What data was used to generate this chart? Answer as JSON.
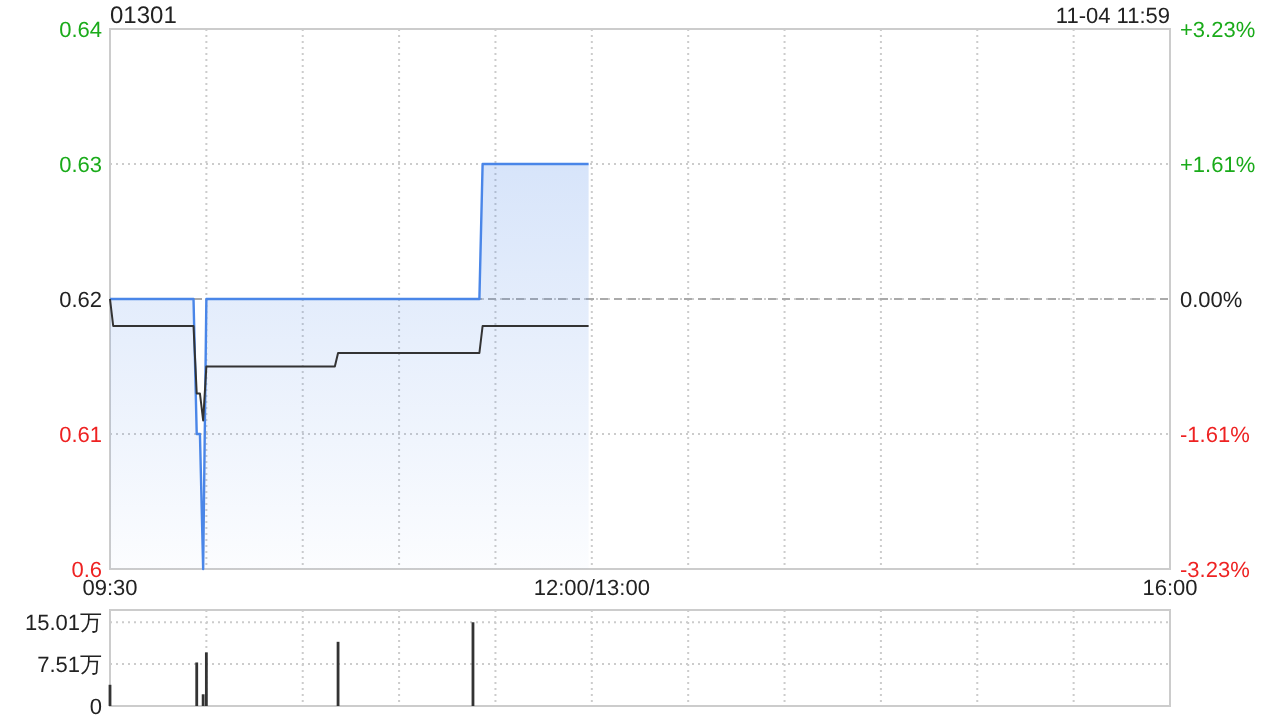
{
  "chart_data": [
    {
      "type": "line",
      "title": "01301",
      "annotations": [
        "11-04 11:59"
      ],
      "categories": [
        "09:30",
        null,
        null,
        null,
        null,
        null,
        null,
        null,
        null,
        null,
        null,
        null,
        null,
        null,
        null,
        null,
        null,
        null,
        null,
        null,
        null,
        null,
        null,
        null,
        null,
        null,
        null,
        null,
        null,
        null,
        null,
        null,
        null,
        null,
        null,
        null,
        null,
        null,
        null,
        null,
        null,
        null,
        null,
        null,
        null,
        null,
        null,
        null,
        null,
        null,
        null,
        null,
        null,
        null,
        null,
        null,
        null,
        null,
        null,
        null,
        null,
        null,
        null,
        null,
        null,
        null,
        null,
        null,
        null,
        null,
        null,
        null,
        null,
        null,
        null,
        null,
        null,
        null,
        null,
        null,
        null,
        null,
        null,
        null,
        null,
        null,
        null,
        null,
        null,
        null,
        null,
        null,
        null,
        null,
        null,
        null,
        null,
        null,
        null,
        null,
        null,
        null,
        null,
        null,
        null,
        null,
        null,
        null,
        null,
        null,
        null,
        null,
        null,
        null,
        null,
        null,
        null,
        null,
        null,
        null,
        null,
        null,
        null,
        null,
        null,
        null,
        null,
        null,
        null,
        null,
        null,
        null,
        null,
        null,
        null,
        null,
        null,
        null,
        null,
        null,
        null,
        null,
        null,
        null,
        null,
        null,
        null,
        null,
        null,
        null,
        "12:00/13:00",
        null,
        null,
        null,
        null,
        null,
        null,
        null,
        null,
        null,
        null,
        null,
        null,
        null,
        null,
        null,
        null,
        null,
        null,
        null,
        null,
        null,
        null,
        null,
        null,
        null,
        null,
        null,
        null,
        null,
        null,
        null,
        null,
        null,
        null,
        null,
        null,
        null,
        null,
        null,
        null,
        null,
        null,
        null,
        null,
        null,
        null,
        null,
        null,
        null,
        null,
        null,
        null,
        null,
        null,
        null,
        null,
        null,
        null,
        null,
        null,
        null,
        null,
        null,
        null,
        null,
        null,
        null,
        null,
        null,
        null,
        null,
        null,
        null,
        null,
        null,
        null,
        null,
        null,
        null,
        null,
        null,
        null,
        null,
        null,
        null,
        null,
        null,
        null,
        null,
        null,
        null,
        null,
        null,
        null,
        null,
        null,
        null,
        null,
        null,
        null,
        null,
        null,
        null,
        null,
        null,
        null,
        null,
        null,
        null,
        null,
        null,
        null,
        null,
        null,
        null,
        null,
        null,
        null,
        null,
        null,
        null,
        null,
        null,
        null,
        null,
        null,
        null,
        null,
        null,
        null,
        null,
        null,
        null,
        null,
        null,
        null,
        null,
        null,
        null,
        null,
        null,
        null,
        null,
        null,
        null,
        null,
        null,
        null,
        null,
        null,
        null,
        null,
        null,
        null,
        null,
        null,
        null,
        null,
        null,
        null,
        null,
        null,
        null,
        null,
        null,
        null,
        null,
        null,
        null,
        null,
        null,
        null,
        null,
        null,
        null,
        null,
        null,
        null,
        null,
        "16:00"
      ],
      "ylim": [
        0.6,
        0.64
      ],
      "yticks": [
        0.6,
        0.61,
        0.62,
        0.63,
        0.64
      ],
      "y2lim": [
        -3.23,
        3.23
      ],
      "y2ticks": [
        {
          "value": -3.23,
          "label": "-3.23%"
        },
        {
          "value": -1.61,
          "label": "-1.61%"
        },
        {
          "value": 0,
          "label": "0.00%"
        },
        {
          "value": 1.61,
          "label": "+1.61%"
        },
        {
          "value": 3.23,
          "label": "+3.23%"
        }
      ],
      "grid": true,
      "ref_lines": [
        {
          "axis": "y",
          "value": 0.62,
          "label": null,
          "color": "#aaaaaa",
          "line_style": "dashed"
        }
      ],
      "series": [
        {
          "type": "area",
          "color": "#4a86e8",
          "values": [
            0.62,
            0.62,
            0.62,
            0.62,
            0.62,
            0.62,
            0.62,
            0.62,
            0.62,
            0.62,
            0.62,
            0.62,
            0.62,
            0.62,
            0.62,
            0.62,
            0.62,
            0.62,
            0.62,
            0.62,
            0.62,
            0.62,
            0.62,
            0.62,
            0.62,
            0.62,
            0.62,
            0.61,
            0.61,
            0.6,
            0.62,
            0.62,
            0.62,
            0.62,
            0.62,
            0.62,
            0.62,
            0.62,
            0.62,
            0.62,
            0.62,
            0.62,
            0.62,
            0.62,
            0.62,
            0.62,
            0.62,
            0.62,
            0.62,
            0.62,
            0.62,
            0.62,
            0.62,
            0.62,
            0.62,
            0.62,
            0.62,
            0.62,
            0.62,
            0.62,
            0.62,
            0.62,
            0.62,
            0.62,
            0.62,
            0.62,
            0.62,
            0.62,
            0.62,
            0.62,
            0.62,
            0.62,
            0.62,
            0.62,
            0.62,
            0.62,
            0.62,
            0.62,
            0.62,
            0.62,
            0.62,
            0.62,
            0.62,
            0.62,
            0.62,
            0.62,
            0.62,
            0.62,
            0.62,
            0.62,
            0.62,
            0.62,
            0.62,
            0.62,
            0.62,
            0.62,
            0.62,
            0.62,
            0.62,
            0.62,
            0.62,
            0.62,
            0.62,
            0.62,
            0.62,
            0.62,
            0.62,
            0.62,
            0.62,
            0.62,
            0.62,
            0.62,
            0.62,
            0.62,
            0.62,
            0.62,
            0.63,
            0.63,
            0.63,
            0.63,
            0.63,
            0.63,
            0.63,
            0.63,
            0.63,
            0.63,
            0.63,
            0.63,
            0.63,
            0.63,
            0.63,
            0.63,
            0.63,
            0.63,
            0.63,
            0.63,
            0.63,
            0.63,
            0.63,
            0.63,
            0.63,
            0.63,
            0.63,
            0.63,
            0.63,
            0.63,
            0.63,
            0.63,
            0.63,
            0.63,
            null,
            null,
            null,
            null,
            null,
            null,
            null,
            null,
            null,
            null,
            null,
            null,
            null,
            null,
            null,
            null,
            null,
            null,
            null,
            null,
            null,
            null,
            null,
            null,
            null,
            null,
            null,
            null,
            null,
            null,
            null,
            null,
            null,
            null,
            null,
            null,
            null,
            null,
            null,
            null,
            null,
            null,
            null,
            null,
            null,
            null,
            null,
            null,
            null,
            null,
            null,
            null,
            null,
            null,
            null,
            null,
            null,
            null,
            null,
            null,
            null,
            null,
            null,
            null,
            null,
            null,
            null,
            null,
            null,
            null,
            null,
            null,
            null,
            null,
            null,
            null,
            null,
            null,
            null,
            null,
            null,
            null,
            null,
            null,
            null,
            null,
            null,
            null,
            null,
            null,
            null,
            null,
            null,
            null,
            null,
            null,
            null,
            null,
            null,
            null,
            null,
            null,
            null,
            null,
            null,
            null,
            null,
            null,
            null,
            null,
            null,
            null,
            null,
            null,
            null,
            null,
            null,
            null,
            null,
            null,
            null,
            null,
            null,
            null,
            null,
            null,
            null,
            null,
            null,
            null,
            null,
            null,
            null,
            null,
            null,
            null,
            null,
            null,
            null,
            null,
            null,
            null,
            null,
            null,
            null,
            null,
            null,
            null,
            null,
            null,
            null,
            null,
            null,
            null,
            null,
            null,
            null,
            null,
            null,
            null,
            null,
            null,
            null,
            null,
            null,
            null,
            null,
            null,
            null,
            null,
            null,
            null,
            null,
            null,
            null,
            null,
            null,
            null,
            null,
            null,
            null
          ]
        },
        {
          "type": "line",
          "color": "#333333",
          "values": [
            0.62,
            0.618,
            0.618,
            0.618,
            0.618,
            0.618,
            0.618,
            0.618,
            0.618,
            0.618,
            0.618,
            0.618,
            0.618,
            0.618,
            0.618,
            0.618,
            0.618,
            0.618,
            0.618,
            0.618,
            0.618,
            0.618,
            0.618,
            0.618,
            0.618,
            0.618,
            0.618,
            0.613,
            0.613,
            0.611,
            0.615,
            0.615,
            0.615,
            0.615,
            0.615,
            0.615,
            0.615,
            0.615,
            0.615,
            0.615,
            0.615,
            0.615,
            0.615,
            0.615,
            0.615,
            0.615,
            0.615,
            0.615,
            0.615,
            0.615,
            0.615,
            0.615,
            0.615,
            0.615,
            0.615,
            0.615,
            0.615,
            0.615,
            0.615,
            0.615,
            0.615,
            0.615,
            0.615,
            0.615,
            0.615,
            0.615,
            0.615,
            0.615,
            0.615,
            0.615,
            0.615,
            0.616,
            0.616,
            0.616,
            0.616,
            0.616,
            0.616,
            0.616,
            0.616,
            0.616,
            0.616,
            0.616,
            0.616,
            0.616,
            0.616,
            0.616,
            0.616,
            0.616,
            0.616,
            0.616,
            0.616,
            0.616,
            0.616,
            0.616,
            0.616,
            0.616,
            0.616,
            0.616,
            0.616,
            0.616,
            0.616,
            0.616,
            0.616,
            0.616,
            0.616,
            0.616,
            0.616,
            0.616,
            0.616,
            0.616,
            0.616,
            0.616,
            0.616,
            0.616,
            0.616,
            0.616,
            0.618,
            0.618,
            0.618,
            0.618,
            0.618,
            0.618,
            0.618,
            0.618,
            0.618,
            0.618,
            0.618,
            0.618,
            0.618,
            0.618,
            0.618,
            0.618,
            0.618,
            0.618,
            0.618,
            0.618,
            0.618,
            0.618,
            0.618,
            0.618,
            0.618,
            0.618,
            0.618,
            0.618,
            0.618,
            0.618,
            0.618,
            0.618,
            0.618,
            0.618,
            null,
            null,
            null,
            null,
            null,
            null,
            null,
            null,
            null,
            null,
            null,
            null,
            null,
            null,
            null,
            null,
            null,
            null,
            null,
            null,
            null,
            null,
            null,
            null,
            null,
            null,
            null,
            null,
            null,
            null,
            null,
            null,
            null,
            null,
            null,
            null,
            null,
            null,
            null,
            null,
            null,
            null,
            null,
            null,
            null,
            null,
            null,
            null,
            null,
            null,
            null,
            null,
            null,
            null,
            null,
            null,
            null,
            null,
            null,
            null,
            null,
            null,
            null,
            null,
            null,
            null,
            null,
            null,
            null,
            null,
            null,
            null,
            null,
            null,
            null,
            null,
            null,
            null,
            null,
            null,
            null,
            null,
            null,
            null,
            null,
            null,
            null,
            null,
            null,
            null,
            null,
            null,
            null,
            null,
            null,
            null,
            null,
            null,
            null,
            null,
            null,
            null,
            null,
            null,
            null,
            null,
            null,
            null,
            null,
            null,
            null,
            null,
            null,
            null,
            null,
            null,
            null,
            null,
            null,
            null,
            null,
            null,
            null,
            null,
            null,
            null,
            null,
            null,
            null,
            null,
            null,
            null,
            null,
            null,
            null,
            null,
            null,
            null,
            null,
            null,
            null,
            null,
            null,
            null,
            null,
            null,
            null,
            null,
            null,
            null,
            null,
            null,
            null,
            null,
            null,
            null,
            null,
            null,
            null,
            null,
            null,
            null,
            null,
            null,
            null,
            null,
            null,
            null,
            null,
            null,
            null,
            null,
            null,
            null,
            null,
            null,
            null,
            null,
            null,
            null,
            null
          ]
        }
      ]
    },
    {
      "type": "bar",
      "tick_labels": "y",
      "grid": true,
      "categories": [
        null,
        null,
        null,
        null,
        null,
        null,
        null,
        null,
        null,
        null,
        null,
        null,
        null,
        null,
        null,
        null,
        null,
        null,
        null,
        null,
        null,
        null,
        null,
        null,
        null,
        null,
        null,
        null,
        null,
        null,
        null,
        null,
        null,
        null,
        null,
        null,
        null,
        null,
        null,
        null,
        null,
        null,
        null,
        null,
        null,
        null,
        null,
        null,
        null,
        null,
        null,
        null,
        null,
        null,
        null,
        null,
        null,
        null,
        null,
        null,
        null,
        null,
        null,
        null,
        null,
        null,
        null,
        null,
        null,
        null,
        null,
        null,
        null,
        null,
        null,
        null,
        null,
        null,
        null,
        null,
        null,
        null,
        null,
        null,
        null,
        null,
        null,
        null,
        null,
        null,
        null,
        null,
        null,
        null,
        null,
        null,
        null,
        null,
        null,
        null,
        null,
        null,
        null,
        null,
        null,
        null,
        null,
        null,
        null,
        null,
        null,
        null,
        null,
        null,
        null,
        null,
        null,
        null,
        null,
        null,
        null,
        null,
        null,
        null,
        null,
        null,
        null,
        null,
        null,
        null,
        null,
        null,
        null,
        null,
        null,
        null,
        null,
        null,
        null,
        null,
        null,
        null,
        null,
        null,
        null,
        null,
        null,
        null,
        null,
        null,
        null,
        null,
        null,
        null,
        null,
        null,
        null,
        null,
        null,
        null,
        null,
        null,
        null,
        null,
        null,
        null,
        null,
        null,
        null,
        null,
        null,
        null,
        null,
        null,
        null,
        null,
        null,
        null,
        null,
        null,
        null,
        null,
        null,
        null,
        null,
        null,
        null,
        null,
        null,
        null,
        null,
        null,
        null,
        null,
        null,
        null,
        null,
        null,
        null,
        null,
        null,
        null,
        null,
        null,
        null,
        null,
        null,
        null,
        null,
        null,
        null,
        null,
        null,
        null,
        null,
        null,
        null,
        null,
        null,
        null,
        null,
        null,
        null,
        null,
        null,
        null,
        null,
        null,
        null,
        null,
        null,
        null,
        null,
        null,
        null,
        null,
        null,
        null,
        null,
        null,
        null,
        null,
        null,
        null,
        null,
        null,
        null,
        null,
        null,
        null,
        null,
        null,
        null,
        null,
        null,
        null,
        null,
        null,
        null,
        null,
        null,
        null,
        null,
        null,
        null,
        null,
        null,
        null,
        null,
        null,
        null,
        null,
        null,
        null,
        null,
        null,
        null,
        null,
        null,
        null,
        null,
        null,
        null,
        null,
        null,
        null,
        null,
        null,
        null,
        null,
        null,
        null,
        null,
        null,
        null,
        null,
        null,
        null,
        null,
        null,
        null,
        null,
        null,
        null,
        null,
        null,
        null,
        null,
        null,
        null,
        null,
        null,
        null,
        null,
        null,
        null,
        null,
        null,
        null,
        null,
        null,
        null,
        null,
        null,
        null,
        null,
        null,
        null,
        null,
        null,
        null
      ],
      "ylim": [
        0,
        17.2
      ],
      "yticks": [
        0,
        {
          "value": 7.51,
          "label": "7.51万"
        },
        {
          "value": 15.01,
          "label": "15.01万"
        }
      ],
      "color": "#333333",
      "values": [
        3.8,
        null,
        null,
        null,
        null,
        null,
        null,
        null,
        null,
        null,
        null,
        null,
        null,
        null,
        null,
        null,
        null,
        null,
        null,
        null,
        null,
        null,
        null,
        null,
        null,
        null,
        null,
        7.8,
        null,
        2.1,
        9.6,
        null,
        null,
        null,
        null,
        null,
        null,
        null,
        null,
        null,
        null,
        null,
        null,
        null,
        null,
        null,
        null,
        null,
        null,
        null,
        null,
        null,
        null,
        null,
        null,
        null,
        null,
        null,
        null,
        null,
        null,
        null,
        null,
        null,
        null,
        null,
        null,
        null,
        null,
        null,
        null,
        11.5,
        null,
        null,
        null,
        null,
        null,
        null,
        null,
        null,
        null,
        null,
        null,
        null,
        null,
        null,
        null,
        null,
        null,
        null,
        null,
        null,
        null,
        null,
        null,
        null,
        null,
        null,
        null,
        null,
        null,
        null,
        null,
        null,
        null,
        null,
        null,
        null,
        null,
        null,
        null,
        null,
        null,
        15.0,
        null,
        null,
        null,
        null,
        null,
        null,
        null,
        null,
        null,
        null,
        null,
        null,
        null,
        null,
        null,
        null,
        null,
        null,
        null,
        null,
        null,
        null,
        null,
        null,
        null,
        null,
        null,
        null,
        null,
        null,
        null,
        null,
        null,
        null,
        null,
        null,
        null,
        null,
        null,
        null,
        null,
        null,
        null,
        null,
        null,
        null,
        null,
        null,
        null,
        null,
        null,
        null,
        null,
        null,
        null,
        null,
        null,
        null,
        null,
        null,
        null,
        null,
        null,
        null,
        null,
        null,
        null,
        null,
        null,
        null,
        null,
        null,
        null,
        null,
        null,
        null,
        null,
        null,
        null,
        null,
        null,
        null,
        null,
        null,
        null,
        null,
        null,
        null,
        null,
        null,
        null,
        null,
        null,
        null,
        null,
        null,
        null,
        null,
        null,
        null,
        null,
        null,
        null,
        null,
        null,
        null,
        null,
        null,
        null,
        null,
        null,
        null,
        null,
        null,
        null,
        null,
        null,
        null,
        null,
        null,
        null,
        null,
        null,
        null,
        null,
        null,
        null,
        null,
        null,
        null,
        null,
        null,
        null,
        null,
        null,
        null,
        null,
        null,
        null,
        null,
        null,
        null,
        null,
        null,
        null,
        null,
        null,
        null,
        null,
        null,
        null,
        null,
        null,
        null,
        null,
        null,
        null,
        null,
        null,
        null,
        null,
        null,
        null,
        null,
        null,
        null,
        null,
        null,
        null,
        null,
        null,
        null,
        null,
        null,
        null,
        null,
        null,
        null,
        null,
        null,
        null,
        null,
        null,
        null,
        null,
        null,
        null,
        null,
        null,
        null,
        null,
        null,
        null,
        null,
        null,
        null,
        null,
        null,
        null,
        null,
        null,
        null,
        null,
        null,
        null,
        null,
        null,
        null,
        null,
        null,
        null,
        null,
        null,
        null,
        null,
        null,
        null
      ]
    }
  ]
}
